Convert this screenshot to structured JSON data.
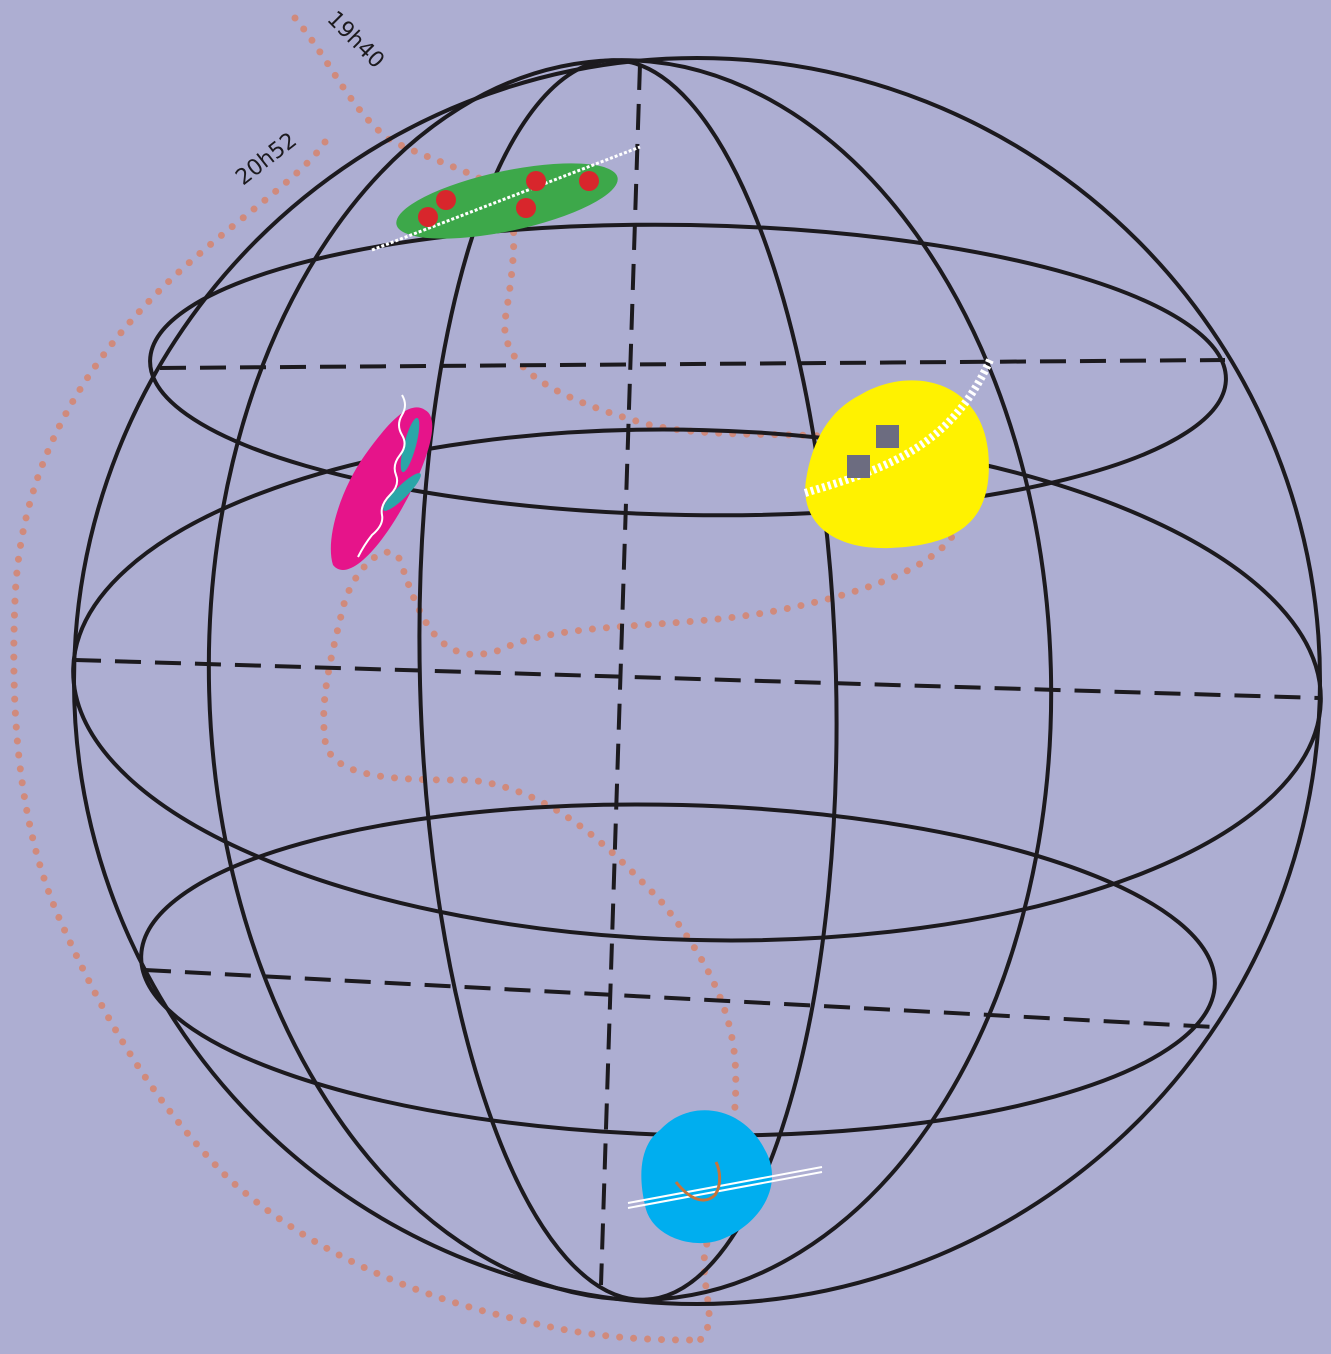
{
  "time_labels": [
    "19h40",
    "20h52"
  ]
}
